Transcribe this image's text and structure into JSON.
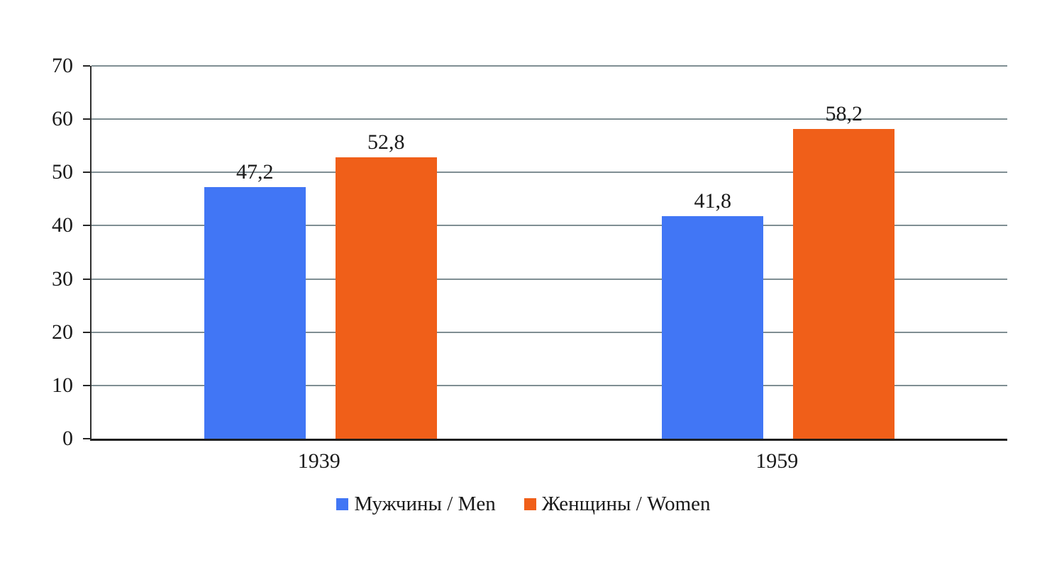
{
  "chart_data": {
    "type": "bar",
    "title": "",
    "xlabel": "",
    "ylabel": "",
    "categories": [
      "1939",
      "1959"
    ],
    "series": [
      {
        "name": "Мужчины / Men",
        "color": "#4176F5",
        "values": [
          47.2,
          41.8
        ],
        "display_values": [
          "47,2",
          "41,8"
        ]
      },
      {
        "name": "Женщины / Women",
        "color": "#F05F19",
        "values": [
          52.8,
          58.2
        ],
        "display_values": [
          "52,8",
          "58,2"
        ]
      }
    ],
    "ylim": [
      0,
      70
    ],
    "yticks": [
      0,
      10,
      20,
      30,
      40,
      50,
      60,
      70
    ],
    "ytick_labels": [
      "0",
      "10",
      "20",
      "30",
      "40",
      "50",
      "60",
      "70"
    ],
    "grid": true,
    "legend_position": "bottom",
    "colors": {
      "gridline": "#7f8e93",
      "axis": "#262626",
      "text": "#1a1a1a"
    }
  }
}
